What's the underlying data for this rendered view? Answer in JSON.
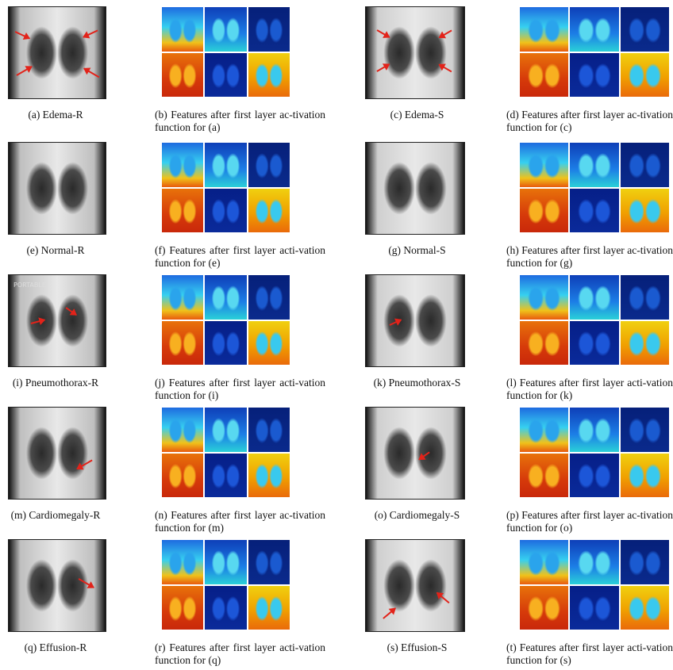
{
  "rows": [
    {
      "panels": [
        {
          "label": "(a) Edema-R",
          "kind": "real"
        },
        {
          "label": "(b) Features after first layer ac-tivation function for (a)",
          "kind": "feat"
        },
        {
          "label": "(c) Edema-S",
          "kind": "synth"
        },
        {
          "label": "(d) Features after first layer ac-tivation function for (c)",
          "kind": "feat"
        }
      ]
    },
    {
      "panels": [
        {
          "label": "(e) Normal-R",
          "kind": "real"
        },
        {
          "label": "(f) Features after first layer acti-vation function for (e)",
          "kind": "feat"
        },
        {
          "label": "(g) Normal-S",
          "kind": "synth"
        },
        {
          "label": "(h) Features after first layer ac-tivation function for (g)",
          "kind": "feat"
        }
      ]
    },
    {
      "panels": [
        {
          "label": "(i) Pneumothorax-R",
          "kind": "real",
          "marker_text": "PORTABLE"
        },
        {
          "label": "(j) Features after first layer acti-vation function for (i)",
          "kind": "feat"
        },
        {
          "label": "(k) Pneumothorax-S",
          "kind": "synth"
        },
        {
          "label": "(l) Features after first layer acti-vation function for (k)",
          "kind": "feat"
        }
      ]
    },
    {
      "panels": [
        {
          "label": "(m) Cardiomegaly-R",
          "kind": "real"
        },
        {
          "label": "(n) Features after first layer ac-tivation function for (m)",
          "kind": "feat"
        },
        {
          "label": "(o) Cardiomegaly-S",
          "kind": "synth"
        },
        {
          "label": "(p) Features after first layer ac-tivation function for (o)",
          "kind": "feat"
        }
      ]
    },
    {
      "panels": [
        {
          "label": "(q) Effusion-R",
          "kind": "real"
        },
        {
          "label": "(r) Features after first layer acti-vation function for (q)",
          "kind": "feat"
        },
        {
          "label": "(s) Effusion-S",
          "kind": "synth"
        },
        {
          "label": "(t) Features after first layer acti-vation function for (s)",
          "kind": "feat"
        }
      ]
    }
  ],
  "colors": {
    "arrow": "#e2231a",
    "heat_hot": "#d63a0a",
    "heat_warm": "#f0b400",
    "heat_mid": "#4fc3e0",
    "heat_cool": "#0a2a8c"
  }
}
